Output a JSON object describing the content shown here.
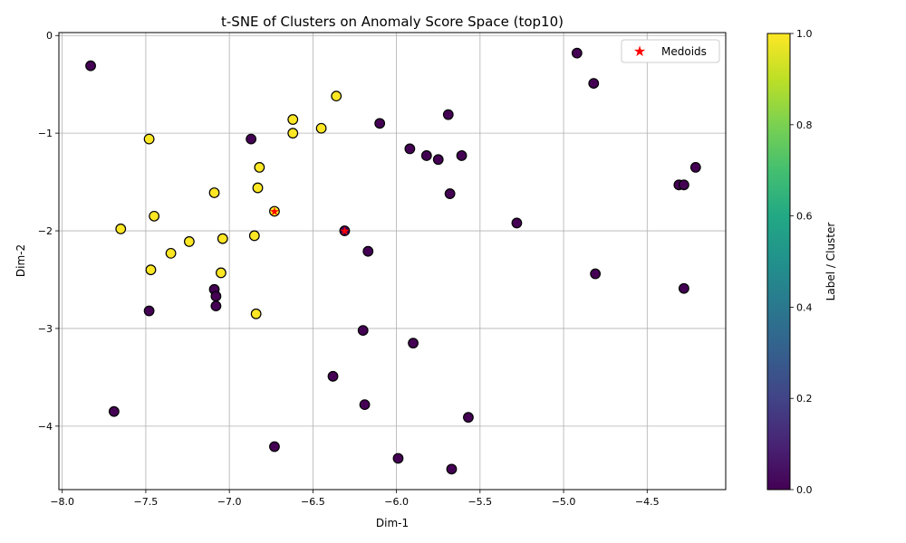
{
  "chart_data": {
    "type": "scatter",
    "title": "t-SNE of Clusters on Anomaly Score Space (top10)",
    "xlabel": "Dim-1",
    "ylabel": "Dim-2",
    "xlim": [
      -8.02,
      -4.03
    ],
    "ylim": [
      -4.65,
      0.03
    ],
    "xticks": [
      -8.0,
      -7.5,
      -7.0,
      -6.5,
      -6.0,
      -5.5,
      -5.0,
      -4.5
    ],
    "xtick_labels": [
      "−8.0",
      "−7.5",
      "−7.0",
      "−6.5",
      "−6.0",
      "−5.5",
      "−5.0",
      "−4.5"
    ],
    "yticks": [
      0,
      -1,
      -2,
      -3,
      -4
    ],
    "ytick_labels": [
      "0",
      "−1",
      "−2",
      "−3",
      "−4"
    ],
    "grid": true,
    "colors": {
      "cluster_0": "#440154",
      "cluster_1": "#fde725",
      "medoid": "#ff0000",
      "grid": "#b0b0b0"
    },
    "series": [
      {
        "name": "Cluster 0",
        "label": 0,
        "points": [
          [
            -7.83,
            -0.31
          ],
          [
            -7.69,
            -3.85
          ],
          [
            -7.48,
            -2.82
          ],
          [
            -7.09,
            -2.6
          ],
          [
            -7.08,
            -2.67
          ],
          [
            -7.08,
            -2.77
          ],
          [
            -6.87,
            -1.06
          ],
          [
            -6.73,
            -4.21
          ],
          [
            -6.38,
            -3.49
          ],
          [
            -6.31,
            -2.0
          ],
          [
            -6.2,
            -3.02
          ],
          [
            -6.19,
            -3.78
          ],
          [
            -6.17,
            -2.21
          ],
          [
            -6.1,
            -0.9
          ],
          [
            -5.99,
            -4.33
          ],
          [
            -5.92,
            -1.16
          ],
          [
            -5.9,
            -3.15
          ],
          [
            -5.82,
            -1.23
          ],
          [
            -5.75,
            -1.27
          ],
          [
            -5.69,
            -0.81
          ],
          [
            -5.68,
            -1.62
          ],
          [
            -5.67,
            -4.44
          ],
          [
            -5.61,
            -1.23
          ],
          [
            -5.57,
            -3.91
          ],
          [
            -5.28,
            -1.92
          ],
          [
            -4.92,
            -0.18
          ],
          [
            -4.82,
            -0.49
          ],
          [
            -4.81,
            -2.44
          ],
          [
            -4.31,
            -1.53
          ],
          [
            -4.28,
            -1.53
          ],
          [
            -4.28,
            -2.59
          ],
          [
            -4.21,
            -1.35
          ]
        ]
      },
      {
        "name": "Cluster 1",
        "label": 1,
        "points": [
          [
            -7.65,
            -1.98
          ],
          [
            -7.48,
            -1.06
          ],
          [
            -7.47,
            -2.4
          ],
          [
            -7.45,
            -1.85
          ],
          [
            -7.35,
            -2.23
          ],
          [
            -7.24,
            -2.11
          ],
          [
            -7.09,
            -1.61
          ],
          [
            -7.05,
            -2.43
          ],
          [
            -7.04,
            -2.08
          ],
          [
            -6.85,
            -2.05
          ],
          [
            -6.84,
            -2.85
          ],
          [
            -6.83,
            -1.56
          ],
          [
            -6.82,
            -1.35
          ],
          [
            -6.73,
            -1.8
          ],
          [
            -6.62,
            -1.0
          ],
          [
            -6.62,
            -0.86
          ],
          [
            -6.45,
            -0.95
          ],
          [
            -6.36,
            -0.62
          ]
        ]
      }
    ],
    "medoids": {
      "label": "Medoids",
      "points": [
        [
          -6.73,
          -1.8
        ],
        [
          -6.31,
          -2.0
        ]
      ]
    },
    "colorbar": {
      "label": "Label / Cluster",
      "ticks": [
        0.0,
        0.2,
        0.4,
        0.6,
        0.8,
        1.0
      ],
      "tick_labels": [
        "0.0",
        "0.2",
        "0.4",
        "0.6",
        "0.8",
        "1.0"
      ]
    }
  }
}
